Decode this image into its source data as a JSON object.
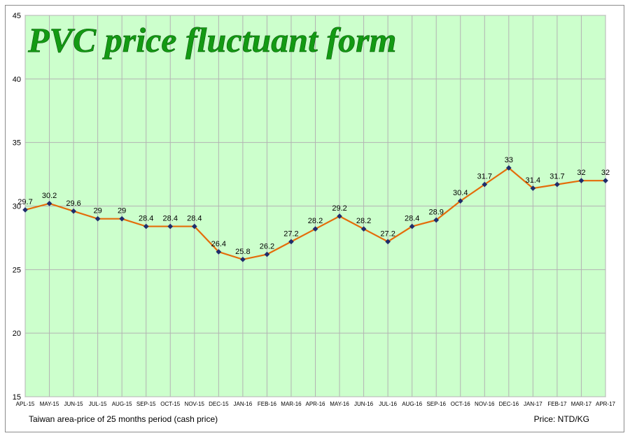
{
  "chart_data": {
    "type": "line",
    "title": "PVC price fluctuant form",
    "categories": [
      "APL-15",
      "MAY-15",
      "JUN-15",
      "JUL-15",
      "AUG-15",
      "SEP-15",
      "OCT-15",
      "NOV-15",
      "DEC-15",
      "JAN-16",
      "FEB-16",
      "MAR-16",
      "APR-16",
      "MAY-16",
      "JUN-16",
      "JUL-16",
      "AUG-16",
      "SEP-16",
      "OCT-16",
      "NOV-16",
      "DEC-16",
      "JAN-17",
      "FEB-17",
      "MAR-17",
      "APR-17"
    ],
    "series": [
      {
        "values": [
          29.7,
          30.2,
          29.6,
          29,
          29,
          28.4,
          28.4,
          28.4,
          26.4,
          25.8,
          26.2,
          27.2,
          28.2,
          29.2,
          28.2,
          27.2,
          28.4,
          28.9,
          30.4,
          31.7,
          33,
          31.4,
          31.7,
          32,
          32
        ],
        "labels": [
          "29.7",
          "30.2",
          "29.6",
          "29",
          "29",
          "28.4",
          "28.4",
          "28.4",
          "26.4",
          "25.8",
          "26.2",
          "27.2",
          "28.2",
          "29.2",
          "28.2",
          "27.2",
          "28.4",
          "28.9",
          "30.4",
          "31.7",
          "33",
          "31.4",
          "31.7",
          "32",
          "32"
        ]
      }
    ],
    "yticks": [
      "15",
      "20",
      "25",
      "30",
      "35",
      "40",
      "45"
    ],
    "ylim": [
      15,
      45
    ],
    "grid": true,
    "colors": {
      "plot_background": "#ccffcc",
      "line": "#e46c0a",
      "marker": "#1f2d6b",
      "grid": "#b3b3b3",
      "title": "#139a13"
    },
    "xlabel": "Taiwan area-price of 25 months period (cash price)",
    "unit_note": "Price: NTD/KG"
  }
}
